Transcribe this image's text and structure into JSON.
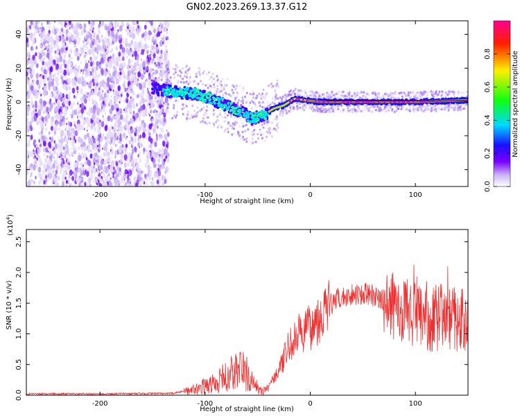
{
  "figure_title": "GN02.2023.269.13.37.G12",
  "colors": {
    "snr_line": "#f03030",
    "frame": "#000000"
  },
  "chart_data": [
    {
      "type": "heatmap",
      "title": "GN02.2023.269.13.37.G12",
      "xlabel": "Height of straight line (km)",
      "ylabel": "Frequency (Hz)",
      "xlim": [
        -270,
        150
      ],
      "ylim": [
        -50,
        48
      ],
      "x_ticks": [
        -200,
        -100,
        0,
        100
      ],
      "x_tick_labels": [
        "-200",
        "-100",
        "0",
        "100"
      ],
      "y_ticks": [
        -40,
        -20,
        0,
        20,
        40
      ],
      "y_tick_labels": [
        "-40",
        "-20",
        "0",
        "20",
        "40"
      ],
      "colorbar": {
        "label": "Normalized spectral amplitude",
        "range": [
          0,
          1
        ],
        "ticks": [
          0.0,
          0.2,
          0.4,
          0.6,
          0.8
        ],
        "tick_labels": [
          "0.0",
          "0.2",
          "0.4",
          "0.6",
          "0.8"
        ],
        "colormap": "purple-blue-cyan-green-yellow-red-magenta"
      },
      "ridge": [
        {
          "x": -150,
          "y": 8
        },
        {
          "x": -130,
          "y": 6
        },
        {
          "x": -110,
          "y": 5
        },
        {
          "x": -95,
          "y": 2
        },
        {
          "x": -80,
          "y": -2
        },
        {
          "x": -65,
          "y": -6
        },
        {
          "x": -55,
          "y": -10
        },
        {
          "x": -45,
          "y": -8
        },
        {
          "x": -35,
          "y": -4
        },
        {
          "x": -25,
          "y": -2
        },
        {
          "x": -15,
          "y": 2
        },
        {
          "x": -5,
          "y": 1
        },
        {
          "x": 10,
          "y": 0
        },
        {
          "x": 50,
          "y": 0
        },
        {
          "x": 100,
          "y": 0
        },
        {
          "x": 150,
          "y": 1
        }
      ]
    },
    {
      "type": "line",
      "xlabel": "Height of straight line (km)",
      "ylabel": "SNR (10 * v/v)",
      "y_multiplier": "(x10",
      "y_multiplier_exp": "4",
      "y_multiplier_close": ")",
      "xlim": [
        -270,
        150
      ],
      "ylim": [
        0,
        2.7
      ],
      "x_ticks": [
        -200,
        -100,
        0,
        100
      ],
      "x_tick_labels": [
        "-200",
        "-100",
        "0",
        "100"
      ],
      "y_ticks": [
        0.0,
        0.5,
        1.0,
        1.5,
        2.0,
        2.5
      ],
      "y_tick_labels": [
        "0.0",
        "0.5",
        "1.0",
        "1.5",
        "2.0",
        "2.5"
      ],
      "series": [
        {
          "values_envelope": [
            {
              "x": -270,
              "y": 0.02
            },
            {
              "x": -200,
              "y": 0.02
            },
            {
              "x": -130,
              "y": 0.03
            },
            {
              "x": -110,
              "y": 0.1
            },
            {
              "x": -90,
              "y": 0.2
            },
            {
              "x": -75,
              "y": 0.35
            },
            {
              "x": -65,
              "y": 0.45
            },
            {
              "x": -55,
              "y": 0.2
            },
            {
              "x": -45,
              "y": 0.05
            },
            {
              "x": -30,
              "y": 0.4
            },
            {
              "x": -20,
              "y": 0.8
            },
            {
              "x": -10,
              "y": 1.0
            },
            {
              "x": 0,
              "y": 1.1
            },
            {
              "x": 10,
              "y": 1.3
            },
            {
              "x": 25,
              "y": 1.55
            },
            {
              "x": 40,
              "y": 1.65
            },
            {
              "x": 55,
              "y": 1.65
            },
            {
              "x": 70,
              "y": 1.55
            },
            {
              "x": 85,
              "y": 1.4
            },
            {
              "x": 100,
              "y": 1.3
            },
            {
              "x": 115,
              "y": 1.25
            },
            {
              "x": 130,
              "y": 1.3
            },
            {
              "x": 150,
              "y": 1.2
            }
          ]
        }
      ]
    }
  ]
}
